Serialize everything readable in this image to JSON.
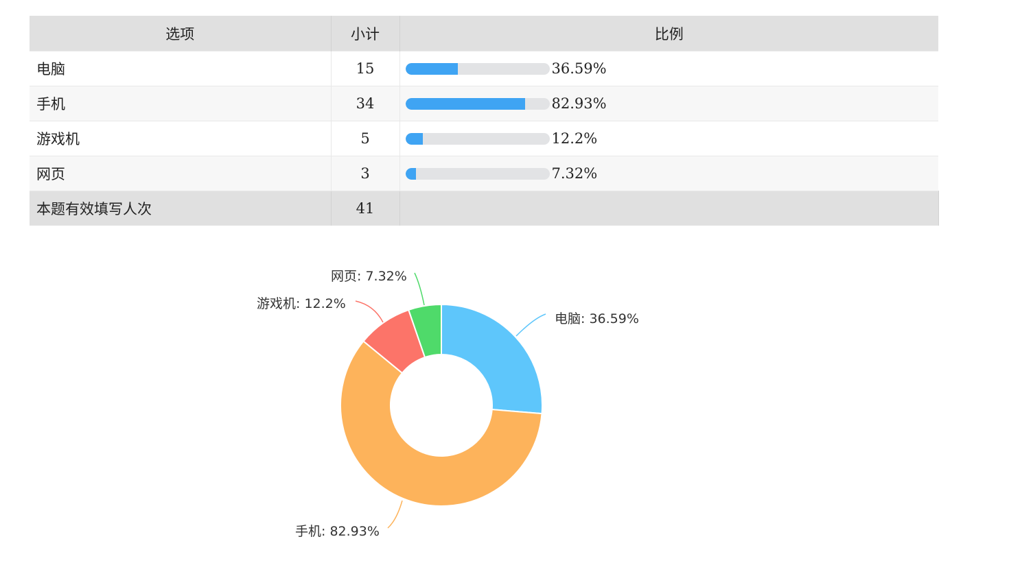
{
  "table": {
    "headers": [
      "选项",
      "小计",
      "比例"
    ],
    "rows": [
      {
        "option": "电脑",
        "count": "15",
        "percent_label": "36.59%",
        "percent": 36.59
      },
      {
        "option": "手机",
        "count": "34",
        "percent_label": "82.93%",
        "percent": 82.93
      },
      {
        "option": "游戏机",
        "count": "5",
        "percent_label": "12.2%",
        "percent": 12.2
      },
      {
        "option": "网页",
        "count": "3",
        "percent_label": "7.32%",
        "percent": 7.32
      }
    ],
    "total": {
      "label": "本题有效填写人次",
      "count": "41"
    }
  },
  "chart_data": {
    "type": "pie",
    "variant": "donut",
    "categories": [
      "电脑",
      "手机",
      "游戏机",
      "网页"
    ],
    "values": [
      15,
      34,
      5,
      3
    ],
    "percent_labels": [
      "36.59%",
      "82.93%",
      "12.2%",
      "7.32%"
    ],
    "labels": [
      "电脑: 36.59%",
      "手机: 82.93%",
      "游戏机: 12.2%",
      "网页: 7.32%"
    ],
    "colors": [
      "#5ec6fb",
      "#fdb35b",
      "#fc7469",
      "#4fda6a"
    ],
    "bar_color": "#3fa4f3"
  }
}
